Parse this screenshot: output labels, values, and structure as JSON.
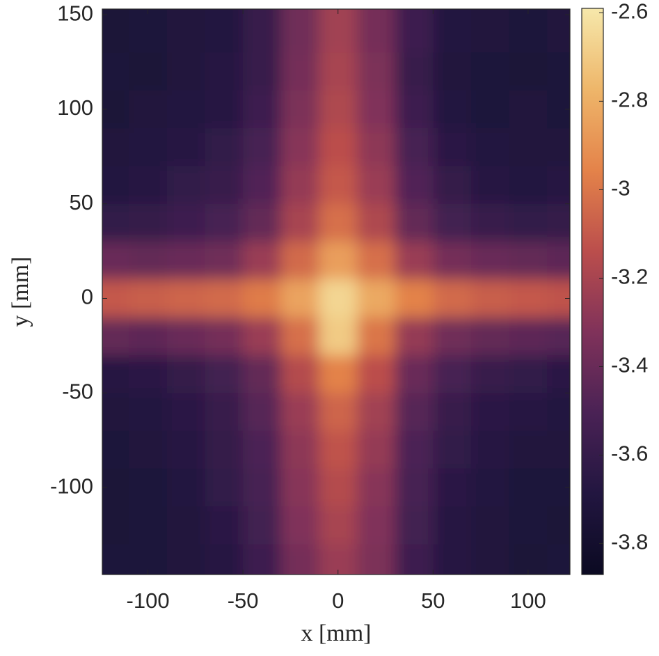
{
  "chart_data": {
    "type": "heatmap",
    "x_label": "x [mm]",
    "y_label": "y [mm]",
    "x": [
      -120,
      -100,
      -80,
      -60,
      -40,
      -20,
      0,
      20,
      40,
      60,
      80,
      100,
      120
    ],
    "y": [
      140,
      120,
      100,
      80,
      60,
      40,
      20,
      0,
      -20,
      -40,
      -60,
      -80,
      -100,
      -120,
      -140
    ],
    "z": [
      [
        -3.74,
        -3.72,
        -3.7,
        -3.68,
        -3.58,
        -3.38,
        -3.22,
        -3.36,
        -3.56,
        -3.68,
        -3.7,
        -3.72,
        -3.7
      ],
      [
        -3.72,
        -3.73,
        -3.7,
        -3.66,
        -3.58,
        -3.36,
        -3.2,
        -3.34,
        -3.58,
        -3.7,
        -3.72,
        -3.74,
        -3.72
      ],
      [
        -3.74,
        -3.7,
        -3.68,
        -3.66,
        -3.56,
        -3.34,
        -3.18,
        -3.32,
        -3.56,
        -3.68,
        -3.72,
        -3.7,
        -3.72
      ],
      [
        -3.7,
        -3.68,
        -3.66,
        -3.62,
        -3.52,
        -3.3,
        -3.14,
        -3.28,
        -3.52,
        -3.64,
        -3.68,
        -3.7,
        -3.7
      ],
      [
        -3.68,
        -3.66,
        -3.62,
        -3.58,
        -3.48,
        -3.26,
        -3.1,
        -3.24,
        -3.48,
        -3.6,
        -3.66,
        -3.68,
        -3.66
      ],
      [
        -3.62,
        -3.6,
        -3.56,
        -3.52,
        -3.42,
        -3.2,
        -3.02,
        -3.18,
        -3.42,
        -3.54,
        -3.58,
        -3.62,
        -3.6
      ],
      [
        -3.4,
        -3.42,
        -3.4,
        -3.38,
        -3.24,
        -3.04,
        -2.86,
        -3.02,
        -3.24,
        -3.36,
        -3.4,
        -3.42,
        -3.44
      ],
      [
        -3.1,
        -3.08,
        -3.06,
        -3.04,
        -2.98,
        -2.84,
        -2.66,
        -2.82,
        -2.96,
        -3.04,
        -3.08,
        -3.1,
        -3.12
      ],
      [
        -3.42,
        -3.44,
        -3.4,
        -3.36,
        -3.24,
        -3.02,
        -2.7,
        -3.0,
        -3.26,
        -3.38,
        -3.42,
        -3.44,
        -3.46
      ],
      [
        -3.66,
        -3.64,
        -3.6,
        -3.54,
        -3.42,
        -3.16,
        -2.96,
        -3.14,
        -3.4,
        -3.52,
        -3.58,
        -3.62,
        -3.64
      ],
      [
        -3.7,
        -3.68,
        -3.64,
        -3.58,
        -3.46,
        -3.24,
        -3.06,
        -3.22,
        -3.46,
        -3.58,
        -3.64,
        -3.66,
        -3.68
      ],
      [
        -3.72,
        -3.7,
        -3.66,
        -3.6,
        -3.5,
        -3.28,
        -3.12,
        -3.26,
        -3.5,
        -3.62,
        -3.66,
        -3.7,
        -3.7
      ],
      [
        -3.74,
        -3.72,
        -3.68,
        -3.62,
        -3.52,
        -3.3,
        -3.16,
        -3.3,
        -3.52,
        -3.64,
        -3.68,
        -3.72,
        -3.72
      ],
      [
        -3.74,
        -3.72,
        -3.7,
        -3.64,
        -3.54,
        -3.32,
        -3.2,
        -3.32,
        -3.54,
        -3.66,
        -3.7,
        -3.72,
        -3.74
      ],
      [
        -3.72,
        -3.72,
        -3.7,
        -3.66,
        -3.56,
        -3.36,
        -3.24,
        -3.34,
        -3.56,
        -3.66,
        -3.7,
        -3.74,
        -3.72
      ]
    ],
    "xlim": [
      -124,
      122
    ],
    "ylim": [
      -146,
      153
    ],
    "xticks": [
      -100,
      -50,
      0,
      50,
      100
    ],
    "yticks": [
      -100,
      -50,
      0,
      50,
      100,
      150
    ],
    "clim": [
      -3.87,
      -2.59
    ],
    "cticks": [
      -3.8,
      -3.6,
      -3.4,
      -3.2,
      -3,
      -2.8,
      -2.6
    ],
    "colormap": [
      "#0b0a22",
      "#221640",
      "#4a2255",
      "#80325a",
      "#bb4e4c",
      "#e4834a",
      "#eeb66a",
      "#f6e8ab"
    ]
  }
}
